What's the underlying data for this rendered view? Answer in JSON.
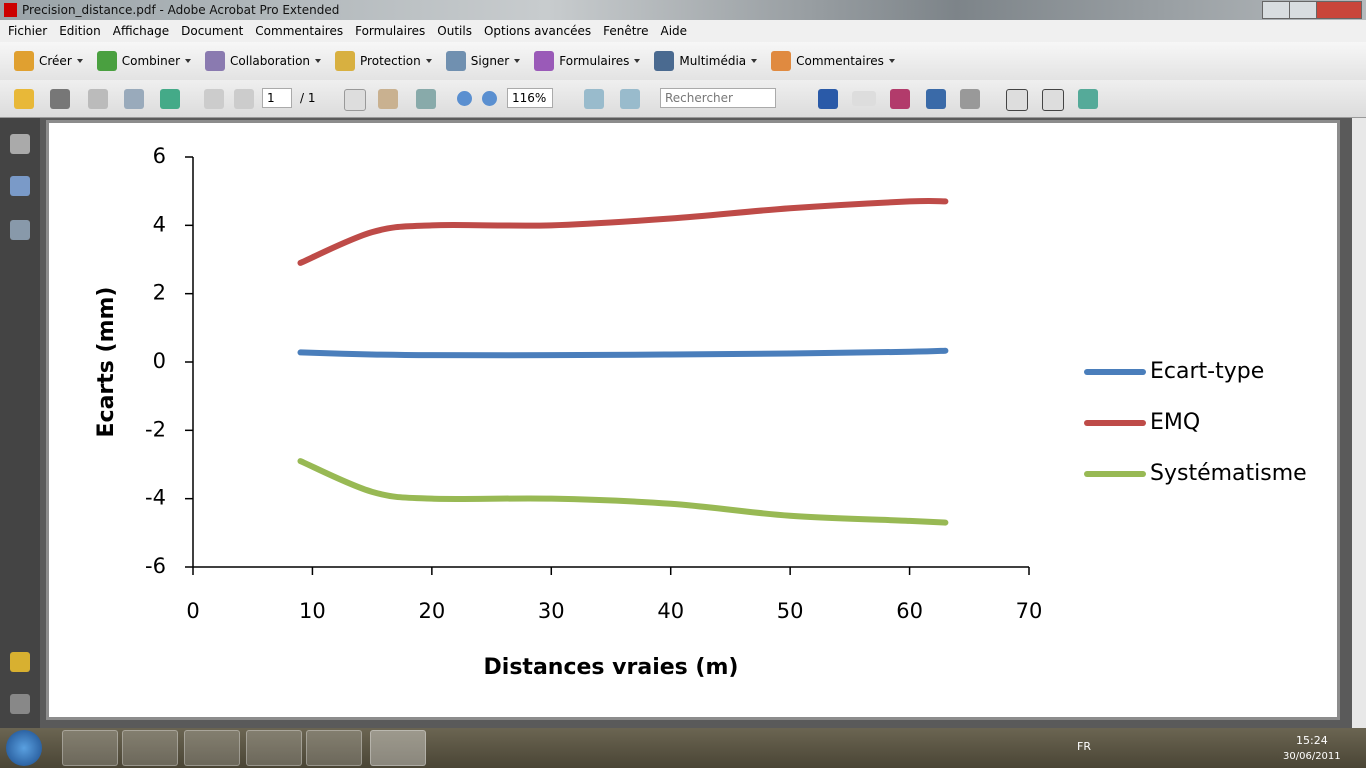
{
  "window_title": "Precision_distance.pdf - Adobe Acrobat Pro Extended",
  "menu": [
    "Fichier",
    "Edition",
    "Affichage",
    "Document",
    "Commentaires",
    "Formulaires",
    "Outils",
    "Options avancées",
    "Fenêtre",
    "Aide"
  ],
  "toolbar": [
    "Créer",
    "Combiner",
    "Collaboration",
    "Protection",
    "Signer",
    "Formulaires",
    "Multimédia",
    "Commentaires"
  ],
  "navigation": {
    "page": "1",
    "page_count": "/ 1",
    "zoom": "116%",
    "search": "Rechercher"
  },
  "taskbar": {
    "language": "FR",
    "time": "15:24",
    "date": "30/06/2011"
  },
  "chart_data": {
    "type": "line",
    "xlabel": "Distances vraies (m)",
    "ylabel": "Ecarts (mm)",
    "x": [
      9,
      15,
      20,
      30,
      40,
      50,
      60,
      63
    ],
    "series": [
      {
        "name": "Ecart-type",
        "color": "#4a7ebb",
        "values": [
          0.28,
          0.22,
          0.2,
          0.2,
          0.22,
          0.25,
          0.3,
          0.33
        ]
      },
      {
        "name": "EMQ",
        "color": "#be4b48",
        "values": [
          2.9,
          3.8,
          4.0,
          4.0,
          4.2,
          4.5,
          4.7,
          4.7
        ]
      },
      {
        "name": "Systématisme",
        "color": "#98b954",
        "values": [
          -2.9,
          -3.8,
          -4.0,
          -4.0,
          -4.15,
          -4.5,
          -4.65,
          -4.7
        ]
      }
    ],
    "xlim": [
      0,
      70
    ],
    "ylim": [
      -6,
      6
    ],
    "xticks": [
      0,
      10,
      20,
      30,
      40,
      50,
      60,
      70
    ],
    "yticks": [
      -6,
      -4,
      -2,
      0,
      2,
      4,
      6
    ],
    "grid": false,
    "smooth": true,
    "legend": "right"
  }
}
